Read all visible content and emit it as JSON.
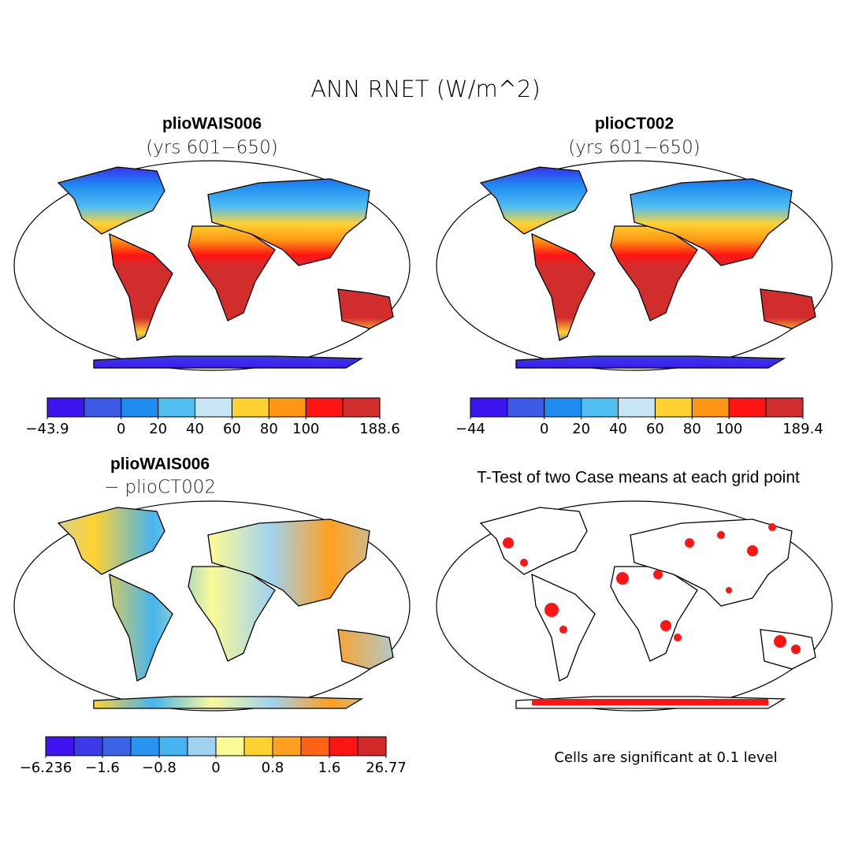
{
  "title": "ANN RNET (W/m^2)",
  "panels": [
    {
      "title": "plioWAIS006",
      "subtitle": "(yrs 601−650)",
      "colorbar": {
        "colors": [
          "#3c14f0",
          "#3c5ae6",
          "#1e8cf0",
          "#50bef0",
          "#c8e6f5",
          "#ffd232",
          "#ff9614",
          "#ff1414",
          "#d22d2d"
        ],
        "ticks": [
          {
            "value": -43.9,
            "label": "−43.9"
          },
          null,
          0,
          20,
          40,
          60,
          80,
          100,
          null,
          188.6
        ]
      }
    },
    {
      "title": "plioCT002",
      "subtitle": "(yrs 601−650)",
      "colorbar": {
        "colors": [
          "#3c14f0",
          "#3c5ae6",
          "#1e8cf0",
          "#50bef0",
          "#c8e6f5",
          "#ffd232",
          "#ff9614",
          "#ff1414",
          "#d22d2d"
        ],
        "ticks": [
          {
            "value": -44,
            "label": "−44"
          },
          null,
          0,
          20,
          40,
          60,
          80,
          100,
          null,
          189.4
        ]
      }
    },
    {
      "title": "plioWAIS006",
      "subtitle": "− plioCT002",
      "colorbar": {
        "colors": [
          "#3f14f0",
          "#3c3ce6",
          "#3a64e6",
          "#2896f0",
          "#46b4f0",
          "#a0d2f0",
          "#fafa96",
          "#ffd232",
          "#ffa01e",
          "#ff6414",
          "#ff1414",
          "#d22828"
        ],
        "ticks": [
          {
            "value": -6.236,
            "label": "−6.236"
          },
          null,
          {
            "value": -1.6,
            "label": "−1.6"
          },
          null,
          {
            "value": -0.8,
            "label": "−0.8"
          },
          null,
          0,
          null,
          0.8,
          null,
          1.6,
          null,
          26.77
        ]
      }
    },
    {
      "title": "T-Test of two Case means at each grid point",
      "note": "Cells are significant at 0.1 level"
    }
  ]
}
